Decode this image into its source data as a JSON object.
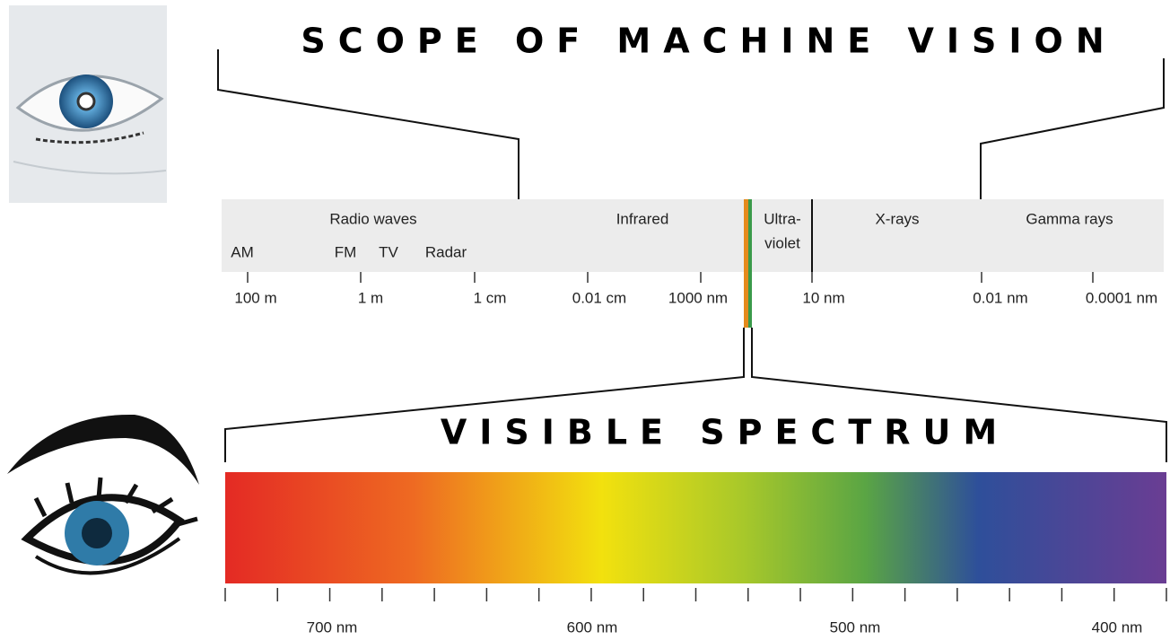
{
  "title": "SCOPE OF MACHINE VISION",
  "bands": [
    "Radio waves",
    "Infrared",
    "Ultra-",
    "violet",
    "X-rays",
    "Gamma rays"
  ],
  "radio_sublabels": [
    "AM",
    "FM",
    "TV",
    "Radar"
  ],
  "scale_labels": [
    "100 m",
    "1 m",
    "1 cm",
    "0.01 cm",
    "1000 nm",
    "10 nm",
    "0.01 nm",
    "0.0001 nm"
  ],
  "visible": {
    "title": "VISIBLE SPECTRUM",
    "labels": [
      "700 nm",
      "600 nm",
      "500 nm",
      "400 nm"
    ]
  }
}
